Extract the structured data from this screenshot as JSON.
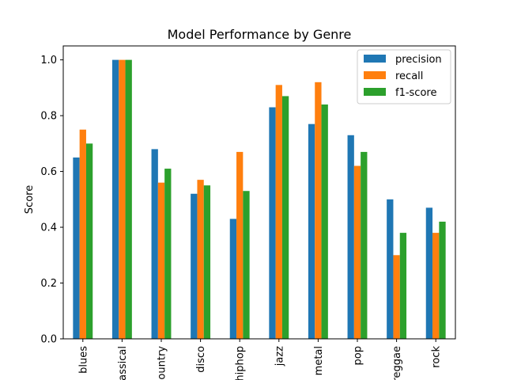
{
  "chart_data": {
    "type": "bar",
    "title": "Model Performance by Genre",
    "xlabel": "",
    "ylabel": "Score",
    "ylim": [
      0,
      1.05
    ],
    "yticks": [
      "0.0",
      "0.2",
      "0.4",
      "0.6",
      "0.8",
      "1.0"
    ],
    "legend_position": "top-right",
    "grid": false,
    "categories": [
      "blues",
      "classical",
      "country",
      "disco",
      "hiphop",
      "jazz",
      "metal",
      "pop",
      "reggae",
      "rock"
    ],
    "series": [
      {
        "name": "precision",
        "color": "#1f77b4",
        "values": [
          0.65,
          1.0,
          0.68,
          0.52,
          0.43,
          0.83,
          0.77,
          0.73,
          0.5,
          0.47
        ]
      },
      {
        "name": "recall",
        "color": "#ff7f0e",
        "values": [
          0.75,
          1.0,
          0.56,
          0.57,
          0.67,
          0.91,
          0.92,
          0.62,
          0.3,
          0.38
        ]
      },
      {
        "name": "f1-score",
        "color": "#2ca02c",
        "values": [
          0.7,
          1.0,
          0.61,
          0.55,
          0.53,
          0.87,
          0.84,
          0.67,
          0.38,
          0.42
        ]
      }
    ]
  }
}
